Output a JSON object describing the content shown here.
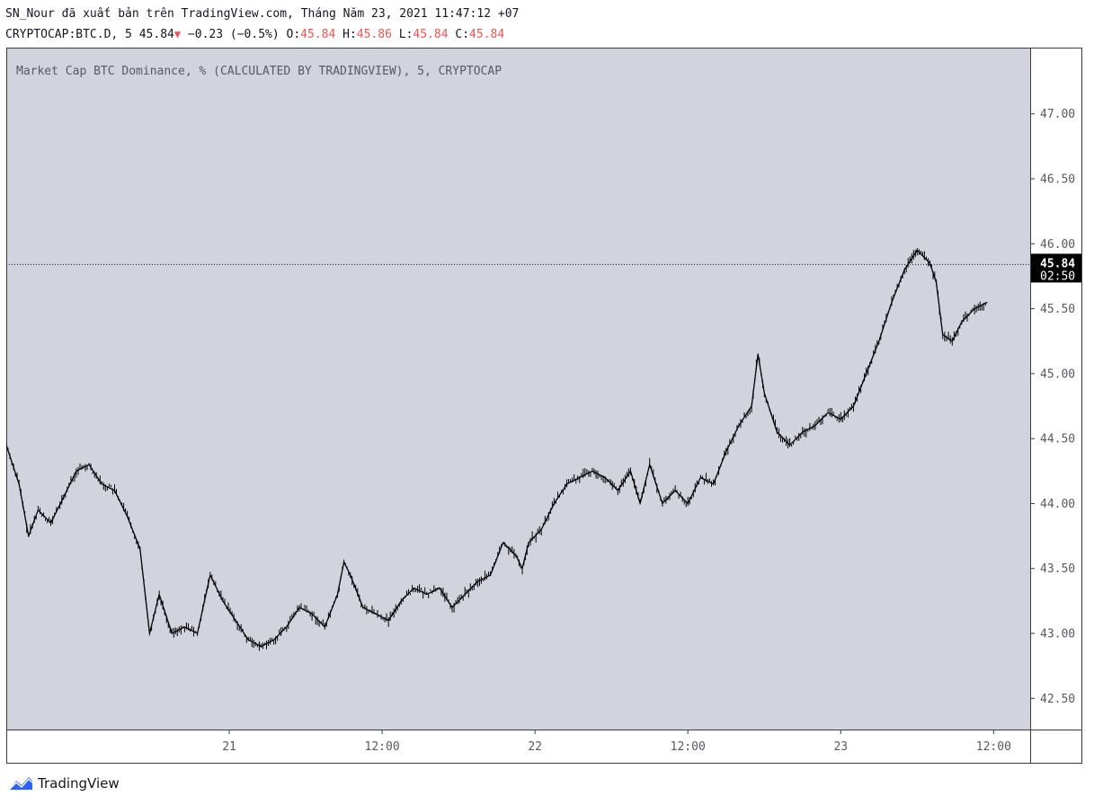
{
  "header": {
    "published_line": "SN_Nour đã xuất bản trên TradingView.com, Tháng Năm 23, 2021 11:47:12 +07",
    "symbol": "CRYPTOCAP:BTC.D, 5",
    "last": "45.84",
    "change": "−0.23 (−0.5%)",
    "o_label": "O:",
    "o_value": "45.84",
    "h_label": "H:",
    "h_value": "45.86",
    "l_label": "L:",
    "l_value": "45.84",
    "c_label": "C:",
    "c_value": "45.84"
  },
  "chart_data": {
    "type": "bar",
    "title": "Market Cap BTC Dominance, % (CALCULATED BY TRADINGVIEW), 5, CRYPTOCAP",
    "x_start": "2021-05-20T06:30",
    "x_end": "2021-05-23T11:50",
    "x_ticks": [
      {
        "time": "2021-05-21T00:00",
        "label": "21"
      },
      {
        "time": "2021-05-21T12:00",
        "label": "12:00"
      },
      {
        "time": "2021-05-22T00:00",
        "label": "22"
      },
      {
        "time": "2021-05-22T12:00",
        "label": "12:00"
      },
      {
        "time": "2021-05-23T00:00",
        "label": "23"
      },
      {
        "time": "2021-05-23T12:00",
        "label": "12:00"
      }
    ],
    "y_ticks": [
      "42.50",
      "43.00",
      "43.50",
      "44.00",
      "44.50",
      "45.00",
      "45.50",
      "46.00",
      "46.50",
      "47.00"
    ],
    "ylim": [
      42.26,
      47.51
    ],
    "last_price": {
      "value": 45.84,
      "label": "45.84",
      "countdown": "02:50"
    },
    "series": [
      {
        "color": "#000000",
        "points": [
          [
            "2021-05-20T06:30",
            44.45
          ],
          [
            "2021-05-20T07:30",
            44.15
          ],
          [
            "2021-05-20T08:15",
            43.75
          ],
          [
            "2021-05-20T09:00",
            43.95
          ],
          [
            "2021-05-20T10:00",
            43.85
          ],
          [
            "2021-05-20T11:00",
            44.05
          ],
          [
            "2021-05-20T12:00",
            44.25
          ],
          [
            "2021-05-20T13:00",
            44.3
          ],
          [
            "2021-05-20T14:00",
            44.15
          ],
          [
            "2021-05-20T15:00",
            44.1
          ],
          [
            "2021-05-20T16:00",
            43.9
          ],
          [
            "2021-05-20T17:00",
            43.65
          ],
          [
            "2021-05-20T17:45",
            43.0
          ],
          [
            "2021-05-20T18:30",
            43.3
          ],
          [
            "2021-05-20T19:30",
            43.0
          ],
          [
            "2021-05-20T20:30",
            43.05
          ],
          [
            "2021-05-20T21:30",
            43.0
          ],
          [
            "2021-05-20T22:30",
            43.45
          ],
          [
            "2021-05-20T23:30",
            43.25
          ],
          [
            "2021-05-21T00:30",
            43.1
          ],
          [
            "2021-05-21T01:30",
            42.95
          ],
          [
            "2021-05-21T02:30",
            42.9
          ],
          [
            "2021-05-21T03:30",
            42.95
          ],
          [
            "2021-05-21T04:30",
            43.05
          ],
          [
            "2021-05-21T05:30",
            43.2
          ],
          [
            "2021-05-21T06:30",
            43.15
          ],
          [
            "2021-05-21T07:30",
            43.05
          ],
          [
            "2021-05-21T08:30",
            43.3
          ],
          [
            "2021-05-21T09:00",
            43.55
          ],
          [
            "2021-05-21T09:30",
            43.45
          ],
          [
            "2021-05-21T10:30",
            43.2
          ],
          [
            "2021-05-21T11:30",
            43.15
          ],
          [
            "2021-05-21T12:30",
            43.1
          ],
          [
            "2021-05-21T13:30",
            43.25
          ],
          [
            "2021-05-21T14:30",
            43.35
          ],
          [
            "2021-05-21T15:30",
            43.3
          ],
          [
            "2021-05-21T16:30",
            43.35
          ],
          [
            "2021-05-21T17:30",
            43.2
          ],
          [
            "2021-05-21T18:30",
            43.3
          ],
          [
            "2021-05-21T19:30",
            43.4
          ],
          [
            "2021-05-21T20:30",
            43.45
          ],
          [
            "2021-05-21T21:30",
            43.7
          ],
          [
            "2021-05-21T22:30",
            43.6
          ],
          [
            "2021-05-21T23:00",
            43.5
          ],
          [
            "2021-05-21T23:30",
            43.7
          ],
          [
            "2021-05-22T00:30",
            43.8
          ],
          [
            "2021-05-22T01:30",
            44.0
          ],
          [
            "2021-05-22T02:30",
            44.15
          ],
          [
            "2021-05-22T03:30",
            44.2
          ],
          [
            "2021-05-22T04:30",
            44.25
          ],
          [
            "2021-05-22T05:30",
            44.2
          ],
          [
            "2021-05-22T06:30",
            44.1
          ],
          [
            "2021-05-22T07:30",
            44.25
          ],
          [
            "2021-05-22T08:15",
            44.0
          ],
          [
            "2021-05-22T09:00",
            44.3
          ],
          [
            "2021-05-22T10:00",
            44.0
          ],
          [
            "2021-05-22T11:00",
            44.1
          ],
          [
            "2021-05-22T12:00",
            44.0
          ],
          [
            "2021-05-22T13:00",
            44.2
          ],
          [
            "2021-05-22T14:00",
            44.15
          ],
          [
            "2021-05-22T15:00",
            44.4
          ],
          [
            "2021-05-22T16:00",
            44.6
          ],
          [
            "2021-05-22T17:00",
            44.75
          ],
          [
            "2021-05-22T17:30",
            45.15
          ],
          [
            "2021-05-22T18:00",
            44.85
          ],
          [
            "2021-05-22T19:00",
            44.55
          ],
          [
            "2021-05-22T20:00",
            44.45
          ],
          [
            "2021-05-22T21:00",
            44.55
          ],
          [
            "2021-05-22T22:00",
            44.6
          ],
          [
            "2021-05-22T23:00",
            44.7
          ],
          [
            "2021-05-23T00:00",
            44.65
          ],
          [
            "2021-05-23T01:00",
            44.75
          ],
          [
            "2021-05-23T02:00",
            45.0
          ],
          [
            "2021-05-23T03:00",
            45.25
          ],
          [
            "2021-05-23T04:00",
            45.55
          ],
          [
            "2021-05-23T05:00",
            45.8
          ],
          [
            "2021-05-23T06:00",
            45.95
          ],
          [
            "2021-05-23T07:00",
            45.85
          ],
          [
            "2021-05-23T07:30",
            45.7
          ],
          [
            "2021-05-23T08:00",
            45.3
          ],
          [
            "2021-05-23T08:45",
            45.25
          ],
          [
            "2021-05-23T09:30",
            45.4
          ],
          [
            "2021-05-23T10:30",
            45.5
          ],
          [
            "2021-05-23T11:30",
            45.55
          ]
        ]
      }
    ]
  },
  "footer": {
    "brand": "TradingView"
  }
}
